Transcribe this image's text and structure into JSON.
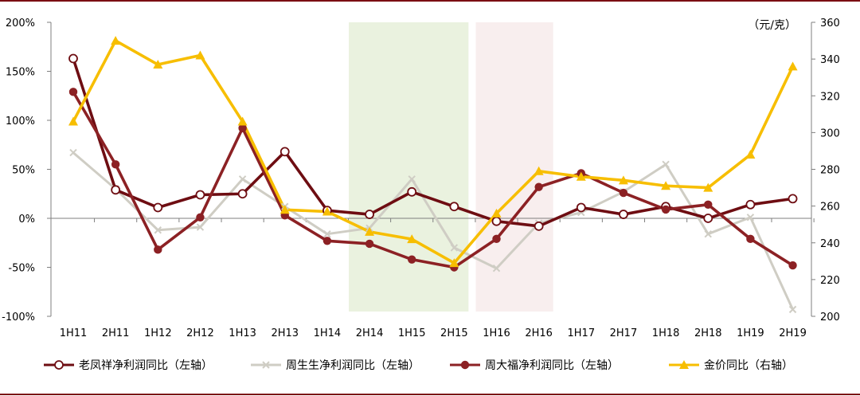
{
  "chart_data": {
    "type": "line",
    "categories": [
      "1H11",
      "2H11",
      "1H12",
      "2H12",
      "1H13",
      "2H13",
      "1H14",
      "2H14",
      "1H15",
      "2H15",
      "1H16",
      "2H16",
      "1H17",
      "2H17",
      "1H18",
      "2H18",
      "1H19",
      "2H19"
    ],
    "left_axis": {
      "ylim": [
        -100,
        200
      ],
      "ticks": [
        "-100%",
        "-50%",
        "0%",
        "50%",
        "100%",
        "150%",
        "200%"
      ],
      "values": [
        -100,
        -50,
        0,
        50,
        100,
        150,
        200
      ]
    },
    "right_axis": {
      "ylim": [
        200,
        360
      ],
      "ticks": [
        "200",
        "220",
        "240",
        "260",
        "280",
        "300",
        "320",
        "340",
        "360"
      ],
      "values": [
        200,
        220,
        240,
        260,
        280,
        300,
        320,
        340,
        360
      ],
      "unit": "（元/克）"
    },
    "shaded_regions": [
      {
        "from": "2H14",
        "to": "2H15",
        "color": "#eaf2df"
      },
      {
        "from": "1H16",
        "to": "2H16",
        "color": "#f8eeee"
      }
    ],
    "series": [
      {
        "name": "老凤祥净利润同比（左轴）",
        "axis": "left",
        "color": "#6e0d12",
        "marker": "circle-open",
        "values": [
          163,
          29,
          11,
          24,
          25,
          68,
          8,
          4,
          27,
          12,
          -3,
          -8,
          11,
          4,
          12,
          0,
          14,
          20
        ]
      },
      {
        "name": "周生生净利润同比（左轴）",
        "axis": "left",
        "color": "#cfcdc4",
        "marker": "x",
        "values": [
          67,
          30,
          -12,
          -9,
          40,
          12,
          -16,
          -10,
          40,
          -30,
          -51,
          -5,
          6,
          27,
          55,
          -16,
          1,
          -93
        ]
      },
      {
        "name": "周大福净利润同比（左轴）",
        "axis": "left",
        "color": "#8c2124",
        "marker": "circle-filled",
        "values": [
          129,
          55,
          -32,
          1,
          92,
          3,
          -23,
          -26,
          -42,
          -50,
          -21,
          32,
          46,
          26,
          9,
          14,
          -21,
          -48
        ]
      },
      {
        "name": "金价同比（右轴）",
        "axis": "right",
        "color": "#f7be00",
        "marker": "triangle",
        "values": [
          306,
          350,
          337,
          342,
          306,
          258,
          257,
          246,
          242,
          229,
          256,
          279,
          276,
          274,
          271,
          270,
          288,
          336
        ]
      }
    ],
    "legend": "bottom"
  }
}
